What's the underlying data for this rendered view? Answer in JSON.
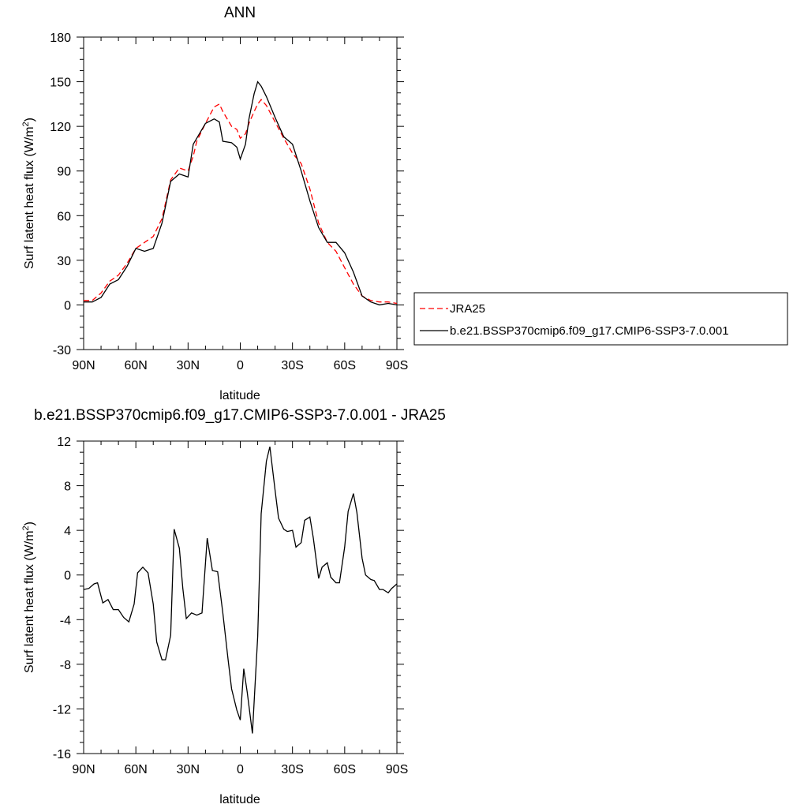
{
  "chart_data": [
    {
      "type": "line",
      "title": "ANN",
      "xlabel": "latitude",
      "ylabel": "Surf latent heat flux (W/m",
      "ylabel_sup": "2",
      "ylabel_end": ")",
      "xlim": [
        90,
        -90
      ],
      "ylim": [
        -30,
        180
      ],
      "xticks": [
        90,
        60,
        30,
        0,
        -30,
        -60,
        -90
      ],
      "xtick_labels": [
        "90N",
        "60N",
        "30N",
        "0",
        "30S",
        "60S",
        "90S"
      ],
      "yticks": [
        -30,
        0,
        30,
        60,
        90,
        120,
        150,
        180
      ],
      "ytick_labels": [
        "-30",
        "0",
        "30",
        "60",
        "90",
        "120",
        "150",
        "180"
      ],
      "legend_position": "right",
      "series": [
        {
          "name": "JRA25",
          "color": "#ff0000",
          "dash": "dashed",
          "x": [
            90,
            85,
            80,
            75,
            70,
            65,
            60,
            55,
            50,
            45,
            40,
            35,
            30,
            27,
            25,
            20,
            15,
            12,
            10,
            5,
            2,
            0,
            -3,
            -5,
            -8,
            -10,
            -12,
            -15,
            -20,
            -25,
            -30,
            -35,
            -40,
            -45,
            -50,
            -55,
            -60,
            -65,
            -70,
            -75,
            -80,
            -85,
            -90
          ],
          "values": [
            3,
            3,
            8,
            16,
            20,
            28,
            38,
            42,
            46,
            58,
            84,
            92,
            90,
            100,
            110,
            122,
            133,
            135,
            130,
            120,
            118,
            112,
            115,
            122,
            130,
            135,
            138,
            134,
            123,
            112,
            102,
            95,
            78,
            55,
            42,
            36,
            25,
            14,
            6,
            3,
            2,
            2,
            1
          ]
        },
        {
          "name": "b.e21.BSSP370cmip6.f09_g17.CMIP6-SSP3-7.0.001",
          "color": "#000000",
          "dash": "solid",
          "x": [
            90,
            85,
            80,
            75,
            70,
            65,
            60,
            55,
            50,
            45,
            40,
            35,
            30,
            27,
            25,
            20,
            15,
            12,
            10,
            5,
            2,
            0,
            -3,
            -5,
            -8,
            -10,
            -12,
            -15,
            -20,
            -25,
            -30,
            -35,
            -40,
            -45,
            -50,
            -55,
            -60,
            -65,
            -70,
            -75,
            -80,
            -85,
            -90
          ],
          "values": [
            2,
            2,
            5,
            14,
            17,
            26,
            38,
            36,
            38,
            55,
            83,
            88,
            86,
            108,
            112,
            122,
            125,
            123,
            110,
            109,
            106,
            98,
            108,
            125,
            142,
            150,
            147,
            140,
            126,
            113,
            108,
            90,
            70,
            52,
            42,
            42,
            35,
            22,
            6,
            2,
            0,
            1,
            0
          ]
        }
      ]
    },
    {
      "type": "line",
      "title": "b.e21.BSSP370cmip6.f09_g17.CMIP6-SSP3-7.0.001 - JRA25",
      "xlabel": "latitude",
      "ylabel": "Surf latent heat flux (W/m",
      "ylabel_sup": "2",
      "ylabel_end": ")",
      "xlim": [
        90,
        -90
      ],
      "ylim": [
        -16,
        12
      ],
      "xticks": [
        90,
        60,
        30,
        0,
        -30,
        -60,
        -90
      ],
      "xtick_labels": [
        "90N",
        "60N",
        "30N",
        "0",
        "30S",
        "60S",
        "90S"
      ],
      "yticks": [
        -16,
        -12,
        -8,
        -4,
        0,
        4,
        8,
        12
      ],
      "ytick_labels": [
        "-16",
        "-12",
        "-8",
        "-4",
        "0",
        "4",
        "8",
        "12"
      ],
      "series": [
        {
          "color": "#000000",
          "dash": "solid",
          "x": [
            90,
            87,
            84,
            82,
            79,
            76,
            73,
            70,
            67,
            64,
            61,
            59,
            56,
            53,
            50,
            48,
            45,
            43,
            40,
            38,
            35,
            33,
            31,
            28,
            25,
            22,
            19,
            16,
            13,
            10,
            7,
            5,
            2,
            0,
            -2,
            -4,
            -7,
            -10,
            -12,
            -15,
            -17,
            -20,
            -22,
            -25,
            -27,
            -30,
            -32,
            -35,
            -37,
            -40,
            -42,
            -45,
            -47,
            -50,
            -52,
            -55,
            -57,
            -60,
            -62,
            -65,
            -67,
            -70,
            -72,
            -75,
            -77,
            -80,
            -82,
            -85,
            -87,
            -90
          ],
          "values": [
            -1.3,
            -1.2,
            -0.8,
            -0.7,
            -2.5,
            -2.2,
            -3.1,
            -3.1,
            -3.8,
            -4.2,
            -2.6,
            0.2,
            0.7,
            0.2,
            -2.6,
            -6.0,
            -7.6,
            -7.6,
            -5.4,
            4.1,
            2.4,
            -1.2,
            -3.9,
            -3.4,
            -3.6,
            -3.4,
            3.3,
            0.4,
            0.3,
            -3.4,
            -7.6,
            -10.2,
            -12.1,
            -13.0,
            -8.4,
            -10.5,
            -14.2,
            -5.5,
            5.5,
            10.2,
            11.5,
            7.6,
            5.1,
            4.1,
            3.9,
            4.0,
            2.5,
            2.9,
            4.9,
            5.2,
            3.3,
            -0.3,
            0.7,
            1.1,
            -0.2,
            -0.7,
            -0.7,
            2.5,
            5.7,
            7.3,
            5.6,
            1.5,
            0.0,
            -0.4,
            -0.5,
            -1.3,
            -1.3,
            -1.6,
            -1.2,
            -0.8
          ]
        }
      ]
    }
  ]
}
